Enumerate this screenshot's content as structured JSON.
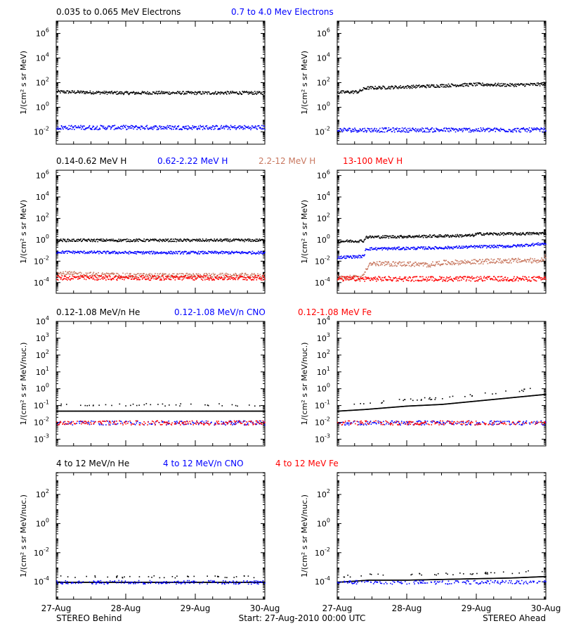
{
  "colors": {
    "black": "#000000",
    "blue": "#0000ff",
    "salmon": "#c87860",
    "red": "#ff0000",
    "background": "#ffffff"
  },
  "x_ticks": [
    "27-Aug",
    "28-Aug",
    "29-Aug",
    "30-Aug"
  ],
  "footer": {
    "left": "STEREO Behind",
    "center": "Start: 27-Aug-2010 00:00 UTC",
    "right": "STEREO Ahead"
  },
  "rows": [
    {
      "legend": [
        {
          "text": "0.035 to 0.065 MeV Electrons",
          "color": "#000000"
        },
        {
          "text": "0.7 to 4.0 Mev Electrons",
          "color": "#0000ff"
        }
      ],
      "ylabel": "1/(cm² s sr MeV)",
      "y_ticks": [
        {
          "base": "10",
          "exp": "6"
        },
        {
          "base": "10",
          "exp": "4"
        },
        {
          "base": "10",
          "exp": "2"
        },
        {
          "base": "10",
          "exp": "0"
        },
        {
          "base": "10",
          "exp": "-2"
        }
      ]
    },
    {
      "legend": [
        {
          "text": "0.14-0.62 MeV H",
          "color": "#000000"
        },
        {
          "text": "0.62-2.22 MeV H",
          "color": "#0000ff"
        },
        {
          "text": "2.2-12 MeV H",
          "color": "#c87860"
        },
        {
          "text": "13-100 MeV H",
          "color": "#ff0000"
        }
      ],
      "ylabel": "1/(cm² s sr MeV)",
      "y_ticks": [
        {
          "base": "10",
          "exp": "6"
        },
        {
          "base": "10",
          "exp": "4"
        },
        {
          "base": "10",
          "exp": "2"
        },
        {
          "base": "10",
          "exp": "0"
        },
        {
          "base": "10",
          "exp": "-2"
        },
        {
          "base": "10",
          "exp": "-4"
        }
      ]
    },
    {
      "legend": [
        {
          "text": "0.12-1.08 MeV/n He",
          "color": "#000000"
        },
        {
          "text": "0.12-1.08 MeV/n CNO",
          "color": "#0000ff"
        },
        {
          "text": "0.12-1.08 MeV Fe",
          "color": "#ff0000"
        }
      ],
      "ylabel": "1/(cm² s sr MeV/nuc.)",
      "y_ticks": [
        {
          "base": "10",
          "exp": "4"
        },
        {
          "base": "10",
          "exp": "3"
        },
        {
          "base": "10",
          "exp": "2"
        },
        {
          "base": "10",
          "exp": "1"
        },
        {
          "base": "10",
          "exp": "0"
        },
        {
          "base": "10",
          "exp": "-1"
        },
        {
          "base": "10",
          "exp": "-2"
        },
        {
          "base": "10",
          "exp": "-3"
        }
      ]
    },
    {
      "legend": [
        {
          "text": "4 to 12 MeV/n He",
          "color": "#000000"
        },
        {
          "text": "4 to 12 MeV/n CNO",
          "color": "#0000ff"
        },
        {
          "text": "4 to 12 MeV Fe",
          "color": "#ff0000"
        }
      ],
      "ylabel": "1/(cm² s sr MeV/nuc.)",
      "y_ticks": [
        {
          "base": "10",
          "exp": "2"
        },
        {
          "base": "10",
          "exp": "0"
        },
        {
          "base": "10",
          "exp": "-2"
        },
        {
          "base": "10",
          "exp": "-4"
        }
      ]
    }
  ],
  "chart_data": [
    {
      "type": "scatter",
      "panel": "STEREO Behind - electrons",
      "ylog": true,
      "ylim_exp": [
        -3,
        7
      ],
      "xlim_days": [
        0,
        3
      ],
      "series": [
        {
          "name": "0.035 to 0.065 MeV Electrons",
          "color": "#000000",
          "x": [
            0,
            0.5,
            1.0,
            1.5,
            2.0,
            2.5,
            3.0
          ],
          "y_log10": [
            1.3,
            1.25,
            1.2,
            1.22,
            1.2,
            1.22,
            1.2
          ]
        },
        {
          "name": "0.7 to 4.0 Mev Electrons",
          "color": "#0000ff",
          "x": [
            0,
            0.5,
            1.0,
            1.5,
            2.0,
            2.5,
            3.0
          ],
          "y_log10": [
            -1.6,
            -1.6,
            -1.6,
            -1.6,
            -1.6,
            -1.6,
            -1.6
          ]
        }
      ]
    },
    {
      "type": "scatter",
      "panel": "STEREO Ahead - electrons",
      "ylog": true,
      "ylim_exp": [
        -3,
        7
      ],
      "xlim_days": [
        0,
        3
      ],
      "series": [
        {
          "name": "0.035 to 0.065 MeV Electrons",
          "color": "#000000",
          "x": [
            0,
            0.3,
            0.4,
            1.0,
            1.5,
            2.0,
            2.5,
            2.9,
            3.0
          ],
          "y_log10": [
            1.25,
            1.3,
            1.6,
            1.7,
            1.8,
            1.9,
            1.85,
            1.9,
            2.0
          ]
        },
        {
          "name": "0.7 to 4.0 Mev Electrons",
          "color": "#0000ff",
          "x": [
            0,
            0.5,
            1.0,
            1.5,
            2.0,
            2.5,
            3.0
          ],
          "y_log10": [
            -1.8,
            -1.8,
            -1.8,
            -1.8,
            -1.8,
            -1.8,
            -1.8
          ]
        }
      ]
    },
    {
      "type": "scatter",
      "panel": "STEREO Behind - protons",
      "ylog": true,
      "ylim_exp": [
        -5,
        6.5
      ],
      "xlim_days": [
        0,
        3
      ],
      "series": [
        {
          "name": "0.14-0.62 MeV H",
          "color": "#000000",
          "x": [
            0,
            1.0,
            2.0,
            3.0
          ],
          "y_log10": [
            0.0,
            0.0,
            0.0,
            0.0
          ]
        },
        {
          "name": "0.62-2.22 MeV H",
          "color": "#0000ff",
          "x": [
            0,
            1.0,
            2.0,
            3.0
          ],
          "y_log10": [
            -1.1,
            -1.15,
            -1.15,
            -1.15
          ]
        },
        {
          "name": "2.2-12 MeV H",
          "color": "#c87860",
          "x": [
            0,
            1.0,
            2.0,
            3.0
          ],
          "y_log10": [
            -3.1,
            -3.3,
            -3.3,
            -3.3
          ]
        },
        {
          "name": "13-100 MeV H",
          "color": "#ff0000",
          "x": [
            0,
            1.0,
            2.0,
            3.0
          ],
          "y_log10": [
            -3.5,
            -3.5,
            -3.5,
            -3.5
          ]
        }
      ]
    },
    {
      "type": "scatter",
      "panel": "STEREO Ahead - protons",
      "ylog": true,
      "ylim_exp": [
        -5,
        6.5
      ],
      "xlim_days": [
        0,
        3
      ],
      "series": [
        {
          "name": "0.14-0.62 MeV H",
          "color": "#000000",
          "x": [
            0,
            0.38,
            0.4,
            1.0,
            1.5,
            1.95,
            2.0,
            2.5,
            3.0
          ],
          "y_log10": [
            -0.1,
            -0.05,
            0.3,
            0.35,
            0.4,
            0.45,
            0.6,
            0.6,
            0.65
          ]
        },
        {
          "name": "0.62-2.22 MeV H",
          "color": "#0000ff",
          "x": [
            0,
            0.38,
            0.4,
            1.0,
            1.5,
            2.0,
            2.5,
            3.0
          ],
          "y_log10": [
            -1.6,
            -1.5,
            -0.8,
            -0.75,
            -0.7,
            -0.6,
            -0.55,
            -0.3
          ]
        },
        {
          "name": "2.2-12 MeV H",
          "color": "#c87860",
          "x": [
            0.0,
            0.35,
            0.4,
            0.45,
            1.0,
            1.3,
            1.5,
            2.0,
            2.5,
            2.9,
            3.0
          ],
          "y_log10": [
            -3.5,
            -3.5,
            -2.8,
            -2.2,
            -2.2,
            -2.3,
            -2.1,
            -2.0,
            -1.9,
            -1.9,
            -1.5
          ]
        },
        {
          "name": "13-100 MeV H",
          "color": "#ff0000",
          "x": [
            0,
            1.0,
            2.0,
            3.0
          ],
          "y_log10": [
            -3.6,
            -3.6,
            -3.6,
            -3.6
          ]
        }
      ]
    },
    {
      "type": "scatter",
      "panel": "STEREO Behind - heavy ions low energy",
      "ylog": true,
      "ylim_exp": [
        -3.4,
        4
      ],
      "xlim_days": [
        0,
        3
      ],
      "series": [
        {
          "name": "0.12-1.08 MeV/n He",
          "color": "#000000",
          "x": [
            0,
            1.0,
            2.0,
            3.0
          ],
          "y_log10": [
            -1.3,
            -1.3,
            -1.3,
            -1.3
          ]
        },
        {
          "name": "0.12-1.08 MeV/n CNO",
          "color": "#0000ff",
          "x": [
            0,
            1.0,
            2.0,
            3.0
          ],
          "y_log10": [
            -2.0,
            -2.0,
            -2.0,
            -2.0
          ]
        },
        {
          "name": "0.12-1.08 MeV Fe",
          "color": "#ff0000",
          "x": [
            0,
            1.0,
            2.0,
            3.0
          ],
          "y_log10": [
            -2.0,
            -2.0,
            -2.0,
            -2.0
          ]
        }
      ]
    },
    {
      "type": "scatter",
      "panel": "STEREO Ahead - heavy ions low energy",
      "ylog": true,
      "ylim_exp": [
        -3.4,
        4
      ],
      "xlim_days": [
        0,
        3
      ],
      "series": [
        {
          "name": "0.12-1.08 MeV/n He",
          "color": "#000000",
          "x": [
            0,
            0.4,
            1.0,
            1.5,
            2.0,
            2.5,
            3.0
          ],
          "y_log10": [
            -1.3,
            -1.2,
            -1.0,
            -0.9,
            -0.7,
            -0.5,
            -0.3
          ]
        },
        {
          "name": "0.12-1.08 MeV/n CNO",
          "color": "#0000ff",
          "x": [
            0,
            1.0,
            2.0,
            3.0
          ],
          "y_log10": [
            -2.0,
            -2.0,
            -2.0,
            -2.0
          ]
        },
        {
          "name": "0.12-1.08 MeV Fe",
          "color": "#ff0000",
          "x": [
            0,
            1.0,
            2.0,
            3.0
          ],
          "y_log10": [
            -2.0,
            -2.0,
            -2.0,
            -2.0
          ]
        }
      ]
    },
    {
      "type": "scatter",
      "panel": "STEREO Behind - heavy ions high energy",
      "ylog": true,
      "ylim_exp": [
        -5.2,
        3.5
      ],
      "xlim_days": [
        0,
        3
      ],
      "series": [
        {
          "name": "4 to 12 MeV/n He",
          "color": "#000000",
          "x": [
            0,
            1.0,
            2.0,
            3.0
          ],
          "y_log10": [
            -4.0,
            -4.0,
            -4.0,
            -4.0
          ]
        },
        {
          "name": "4 to 12 MeV/n CNO",
          "color": "#0000ff",
          "x": [
            0,
            1.0,
            2.0,
            3.0
          ],
          "y_log10": [
            -4.0,
            -4.0,
            -4.0,
            -4.0
          ]
        },
        {
          "name": "4 to 12 MeV Fe",
          "color": "#ff0000",
          "x": [],
          "y_log10": []
        }
      ]
    },
    {
      "type": "scatter",
      "panel": "STEREO Ahead - heavy ions high energy",
      "ylog": true,
      "ylim_exp": [
        -5.2,
        3.5
      ],
      "xlim_days": [
        0,
        3
      ],
      "series": [
        {
          "name": "4 to 12 MeV/n He",
          "color": "#000000",
          "x": [
            0,
            0.45,
            1.0,
            1.5,
            2.0,
            2.5,
            3.0
          ],
          "y_log10": [
            -4.0,
            -3.85,
            -3.85,
            -3.8,
            -3.75,
            -3.7,
            -3.6
          ]
        },
        {
          "name": "4 to 12 MeV/n CNO",
          "color": "#0000ff",
          "x": [
            0,
            1.0,
            2.0,
            3.0
          ],
          "y_log10": [
            -4.0,
            -4.0,
            -4.0,
            -4.0
          ]
        },
        {
          "name": "4 to 12 MeV Fe",
          "color": "#ff0000",
          "x": [],
          "y_log10": []
        }
      ]
    }
  ]
}
